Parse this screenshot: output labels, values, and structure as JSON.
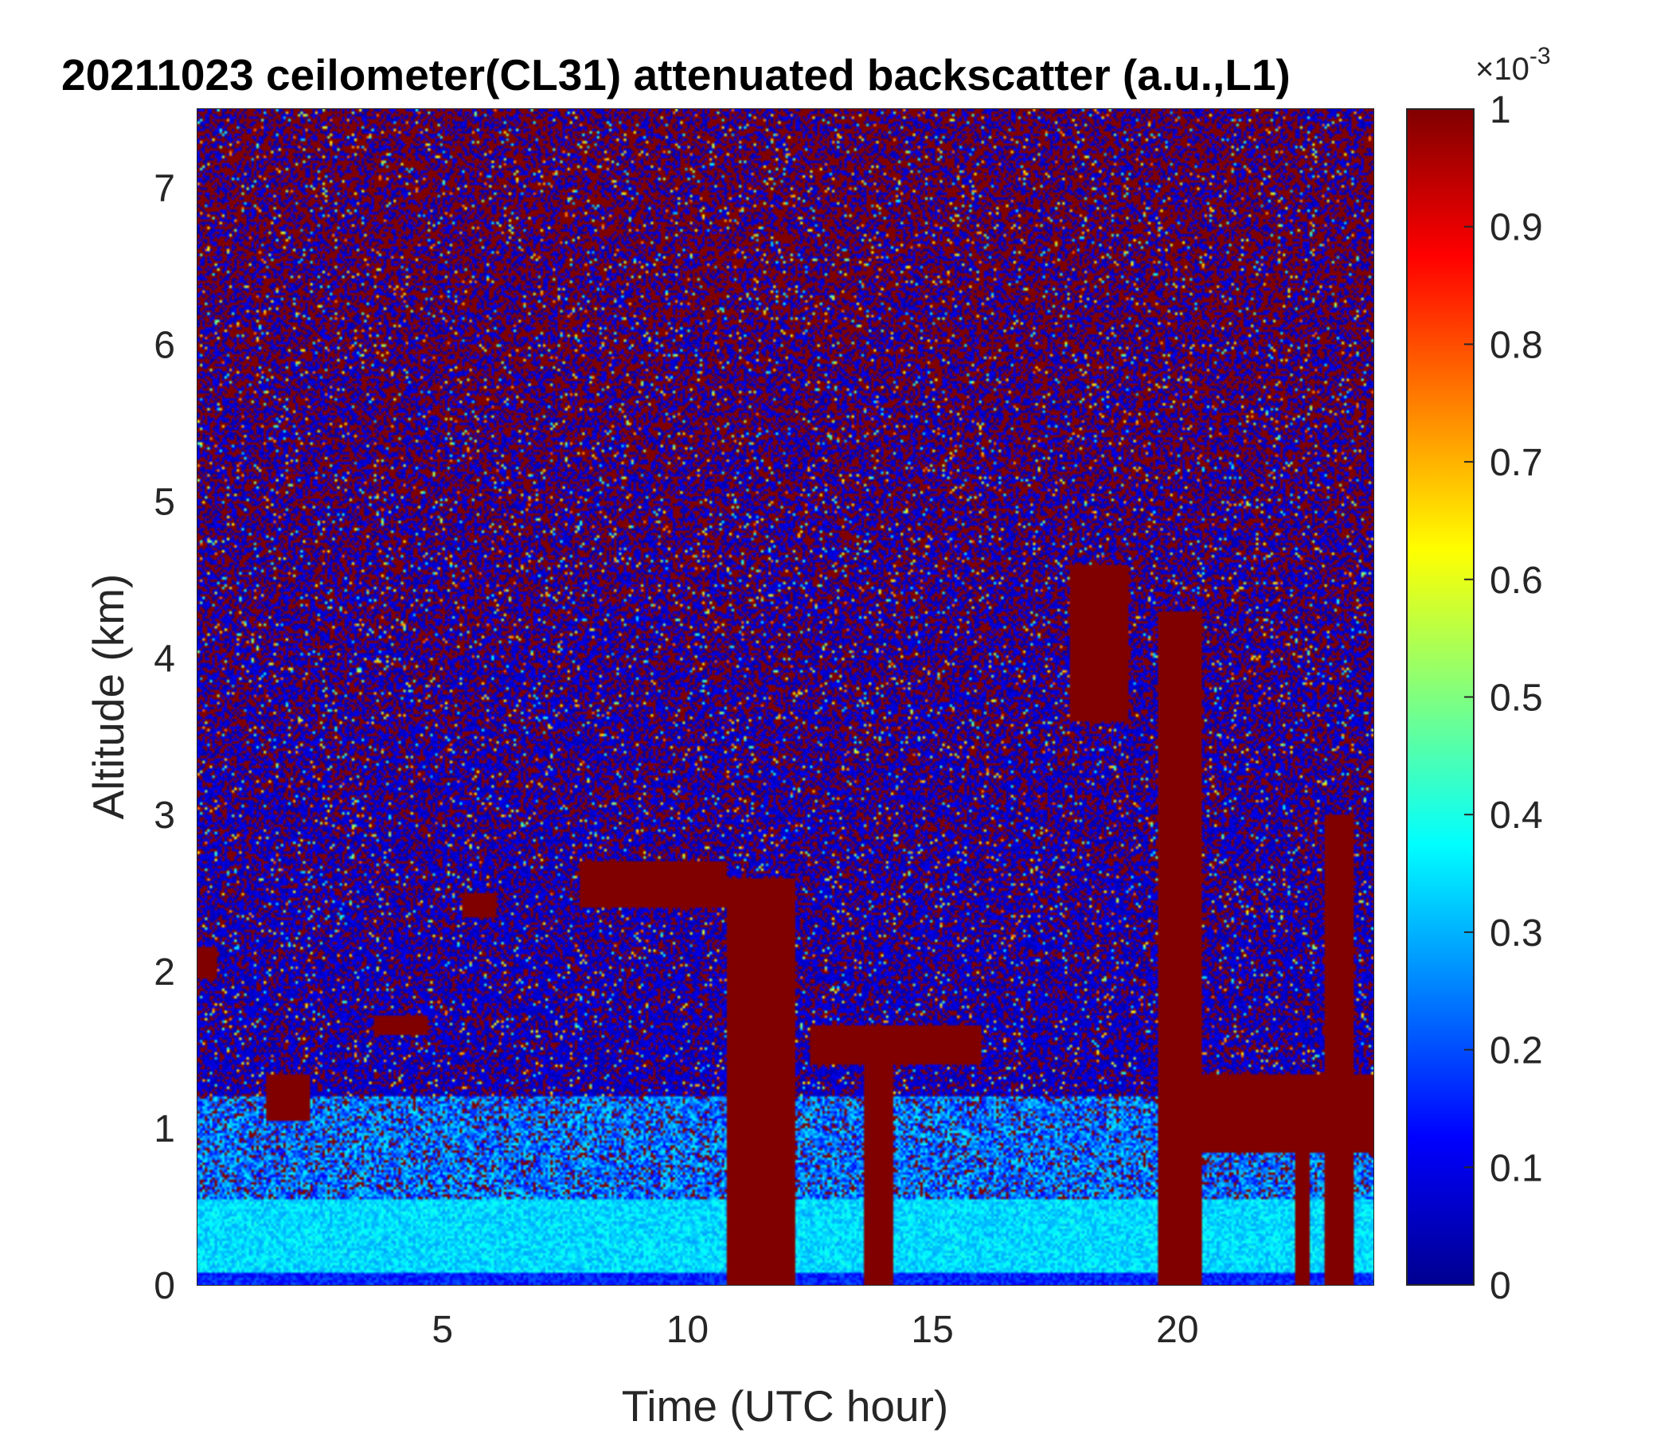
{
  "chart_data": {
    "type": "heatmap",
    "title": "20211023 ceilometer(CL31) attenuated backscatter (a.u.,L1)",
    "xlabel": "Time (UTC hour)",
    "ylabel": "Altitude (km)",
    "xlim": [
      0,
      24
    ],
    "ylim": [
      0,
      7.5
    ],
    "x_ticks": [
      5,
      10,
      15,
      20
    ],
    "x_tick_labels": [
      "5",
      "10",
      "15",
      "20"
    ],
    "y_ticks": [
      0,
      1,
      2,
      3,
      4,
      5,
      6,
      7
    ],
    "y_tick_labels": [
      "0",
      "1",
      "2",
      "3",
      "4",
      "5",
      "6",
      "7"
    ],
    "colorbar": {
      "colormap": "jet",
      "range": [
        0,
        1
      ],
      "ticks": [
        0,
        0.1,
        0.2,
        0.3,
        0.4,
        0.5,
        0.6,
        0.7,
        0.8,
        0.9,
        1
      ],
      "tick_labels": [
        "0",
        "0.1",
        "0.2",
        "0.3",
        "0.4",
        "0.5",
        "0.6",
        "0.7",
        "0.8",
        "0.9",
        "1"
      ],
      "exponent_base": "×10",
      "exponent_power": "-3"
    },
    "features": [
      {
        "kind": "surface_layer",
        "t_start": 0,
        "t_end": 24,
        "alt_top_km": 0.5,
        "value": 0.33
      },
      {
        "kind": "cloud",
        "t_start": 0.0,
        "t_end": 0.4,
        "alt_bottom_km": 1.95,
        "alt_top_km": 2.15,
        "value": 1
      },
      {
        "kind": "cloud",
        "t_start": 1.4,
        "t_end": 2.3,
        "alt_bottom_km": 1.05,
        "alt_top_km": 1.35,
        "value": 1
      },
      {
        "kind": "cloud",
        "t_start": 3.6,
        "t_end": 4.7,
        "alt_bottom_km": 1.6,
        "alt_top_km": 1.72,
        "value": 1
      },
      {
        "kind": "cloud",
        "t_start": 5.4,
        "t_end": 6.1,
        "alt_bottom_km": 2.35,
        "alt_top_km": 2.5,
        "value": 1
      },
      {
        "kind": "cloud",
        "t_start": 7.8,
        "t_end": 10.8,
        "alt_bottom_km": 2.4,
        "alt_top_km": 2.7,
        "value": 1
      },
      {
        "kind": "precip_column",
        "t_start": 10.8,
        "t_end": 12.2,
        "alt_top_km": 2.6,
        "value": 1
      },
      {
        "kind": "precip_column",
        "t_start": 13.6,
        "t_end": 14.2,
        "alt_top_km": 1.6,
        "value": 1
      },
      {
        "kind": "cloud",
        "t_start": 12.5,
        "t_end": 16.0,
        "alt_bottom_km": 1.4,
        "alt_top_km": 1.65,
        "value": 1
      },
      {
        "kind": "cloud",
        "t_start": 17.8,
        "t_end": 19.0,
        "alt_bottom_km": 3.6,
        "alt_top_km": 4.6,
        "value": 1
      },
      {
        "kind": "precip_column",
        "t_start": 19.6,
        "t_end": 20.5,
        "alt_top_km": 4.3,
        "value": 1
      },
      {
        "kind": "precip_column",
        "t_start": 22.4,
        "t_end": 22.7,
        "alt_top_km": 1.3,
        "value": 1
      },
      {
        "kind": "precip_column",
        "t_start": 23.0,
        "t_end": 23.6,
        "alt_top_km": 3.0,
        "value": 1
      },
      {
        "kind": "cloud",
        "t_start": 20.5,
        "t_end": 24.0,
        "alt_bottom_km": 0.85,
        "alt_top_km": 1.35,
        "value": 1
      },
      {
        "kind": "background_noise",
        "t_start": 0,
        "t_end": 24,
        "alt_bottom_km": 0.5,
        "alt_top_km": 7.5,
        "value": "mixed 0 / 1 speckle"
      }
    ]
  }
}
